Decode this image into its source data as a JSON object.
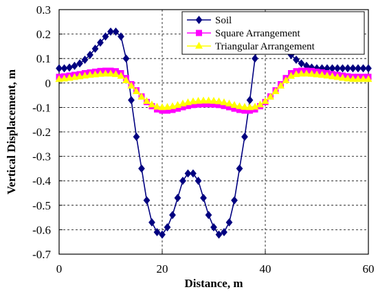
{
  "chart_data": {
    "type": "line",
    "xlabel": "Distance, m",
    "ylabel": "Vertical Displacement, m",
    "xlim": [
      0,
      60
    ],
    "ylim": [
      -0.7,
      0.3
    ],
    "x_ticks": [
      "0",
      "20",
      "40",
      "60"
    ],
    "x_tick_values": [
      0,
      20,
      40,
      60
    ],
    "y_ticks": [
      "0.3",
      "0.2",
      "0.1",
      "0",
      "-0.1",
      "-0.2",
      "-0.3",
      "-0.4",
      "-0.5",
      "-0.6",
      "-0.7"
    ],
    "y_tick_values": [
      0.3,
      0.2,
      0.1,
      0,
      -0.1,
      -0.2,
      -0.3,
      -0.4,
      -0.5,
      -0.6,
      -0.7
    ],
    "grid": "major, dashed",
    "legend_position": "top-right",
    "series": [
      {
        "name": "Soil",
        "color": "#000080",
        "marker": "diamond",
        "x": [
          0,
          1,
          2,
          3,
          4,
          5,
          6,
          7,
          8,
          9,
          10,
          11,
          12,
          13,
          14,
          15,
          16,
          17,
          18,
          19,
          20,
          21,
          22,
          23,
          24,
          25,
          26,
          27,
          28,
          29,
          30,
          31,
          32,
          33,
          34,
          35,
          36,
          37,
          38,
          39,
          40,
          41,
          42,
          43,
          44,
          45,
          46,
          47,
          48,
          49,
          50,
          51,
          52,
          53,
          54,
          55,
          56,
          57,
          58,
          59,
          60
        ],
        "y": [
          0.06,
          0.06,
          0.063,
          0.07,
          0.08,
          0.095,
          0.115,
          0.14,
          0.165,
          0.19,
          0.21,
          0.21,
          0.19,
          0.1,
          -0.07,
          -0.22,
          -0.35,
          -0.48,
          -0.57,
          -0.61,
          -0.62,
          -0.59,
          -0.54,
          -0.47,
          -0.4,
          -0.37,
          -0.37,
          -0.4,
          -0.47,
          -0.54,
          -0.59,
          -0.62,
          -0.61,
          -0.57,
          -0.48,
          -0.35,
          -0.22,
          -0.07,
          0.1,
          0.19,
          0.21,
          0.21,
          0.19,
          0.165,
          0.14,
          0.115,
          0.095,
          0.08,
          0.07,
          0.063,
          0.06,
          0.06,
          0.06,
          0.06,
          0.06,
          0.06,
          0.06,
          0.06,
          0.06,
          0.06,
          0.06
        ]
      },
      {
        "name": "Square Arrangement",
        "color": "#ff00ff",
        "marker": "square",
        "x": [
          0,
          1,
          2,
          3,
          4,
          5,
          6,
          7,
          8,
          9,
          10,
          11,
          12,
          13,
          14,
          15,
          16,
          17,
          18,
          19,
          20,
          21,
          22,
          23,
          24,
          25,
          26,
          27,
          28,
          29,
          30,
          31,
          32,
          33,
          34,
          35,
          36,
          37,
          38,
          39,
          40,
          41,
          42,
          43,
          44,
          45,
          46,
          47,
          48,
          49,
          50,
          51,
          52,
          53,
          54,
          55,
          56,
          57,
          58,
          59,
          60
        ],
        "y": [
          0.025,
          0.027,
          0.03,
          0.033,
          0.036,
          0.04,
          0.043,
          0.046,
          0.049,
          0.05,
          0.05,
          0.048,
          0.04,
          0.02,
          -0.005,
          -0.03,
          -0.055,
          -0.078,
          -0.095,
          -0.108,
          -0.113,
          -0.113,
          -0.11,
          -0.105,
          -0.099,
          -0.094,
          -0.09,
          -0.088,
          -0.087,
          -0.087,
          -0.088,
          -0.09,
          -0.094,
          -0.099,
          -0.105,
          -0.11,
          -0.113,
          -0.113,
          -0.108,
          -0.095,
          -0.078,
          -0.055,
          -0.03,
          -0.005,
          0.02,
          0.04,
          0.048,
          0.05,
          0.05,
          0.049,
          0.046,
          0.043,
          0.04,
          0.036,
          0.033,
          0.03,
          0.027,
          0.025,
          0.025,
          0.025,
          0.025
        ]
      },
      {
        "name": "Triangular Arrangement",
        "color": "#ffff00",
        "marker": "triangle",
        "x": [
          0,
          1,
          2,
          3,
          4,
          5,
          6,
          7,
          8,
          9,
          10,
          11,
          12,
          13,
          14,
          15,
          16,
          17,
          18,
          19,
          20,
          21,
          22,
          23,
          24,
          25,
          26,
          27,
          28,
          29,
          30,
          31,
          32,
          33,
          34,
          35,
          36,
          37,
          38,
          39,
          40,
          41,
          42,
          43,
          44,
          45,
          46,
          47,
          48,
          49,
          50,
          51,
          52,
          53,
          54,
          55,
          56,
          57,
          58,
          59,
          60
        ],
        "y": [
          0.015,
          0.017,
          0.02,
          0.023,
          0.026,
          0.029,
          0.032,
          0.034,
          0.036,
          0.037,
          0.037,
          0.035,
          0.028,
          0.01,
          -0.012,
          -0.035,
          -0.057,
          -0.075,
          -0.089,
          -0.098,
          -0.1,
          -0.099,
          -0.096,
          -0.091,
          -0.085,
          -0.08,
          -0.076,
          -0.074,
          -0.073,
          -0.073,
          -0.074,
          -0.076,
          -0.08,
          -0.085,
          -0.091,
          -0.096,
          -0.099,
          -0.1,
          -0.098,
          -0.089,
          -0.075,
          -0.057,
          -0.035,
          -0.012,
          0.01,
          0.028,
          0.035,
          0.037,
          0.037,
          0.036,
          0.034,
          0.032,
          0.029,
          0.026,
          0.023,
          0.02,
          0.017,
          0.015,
          0.015,
          0.015,
          0.015
        ]
      }
    ]
  }
}
